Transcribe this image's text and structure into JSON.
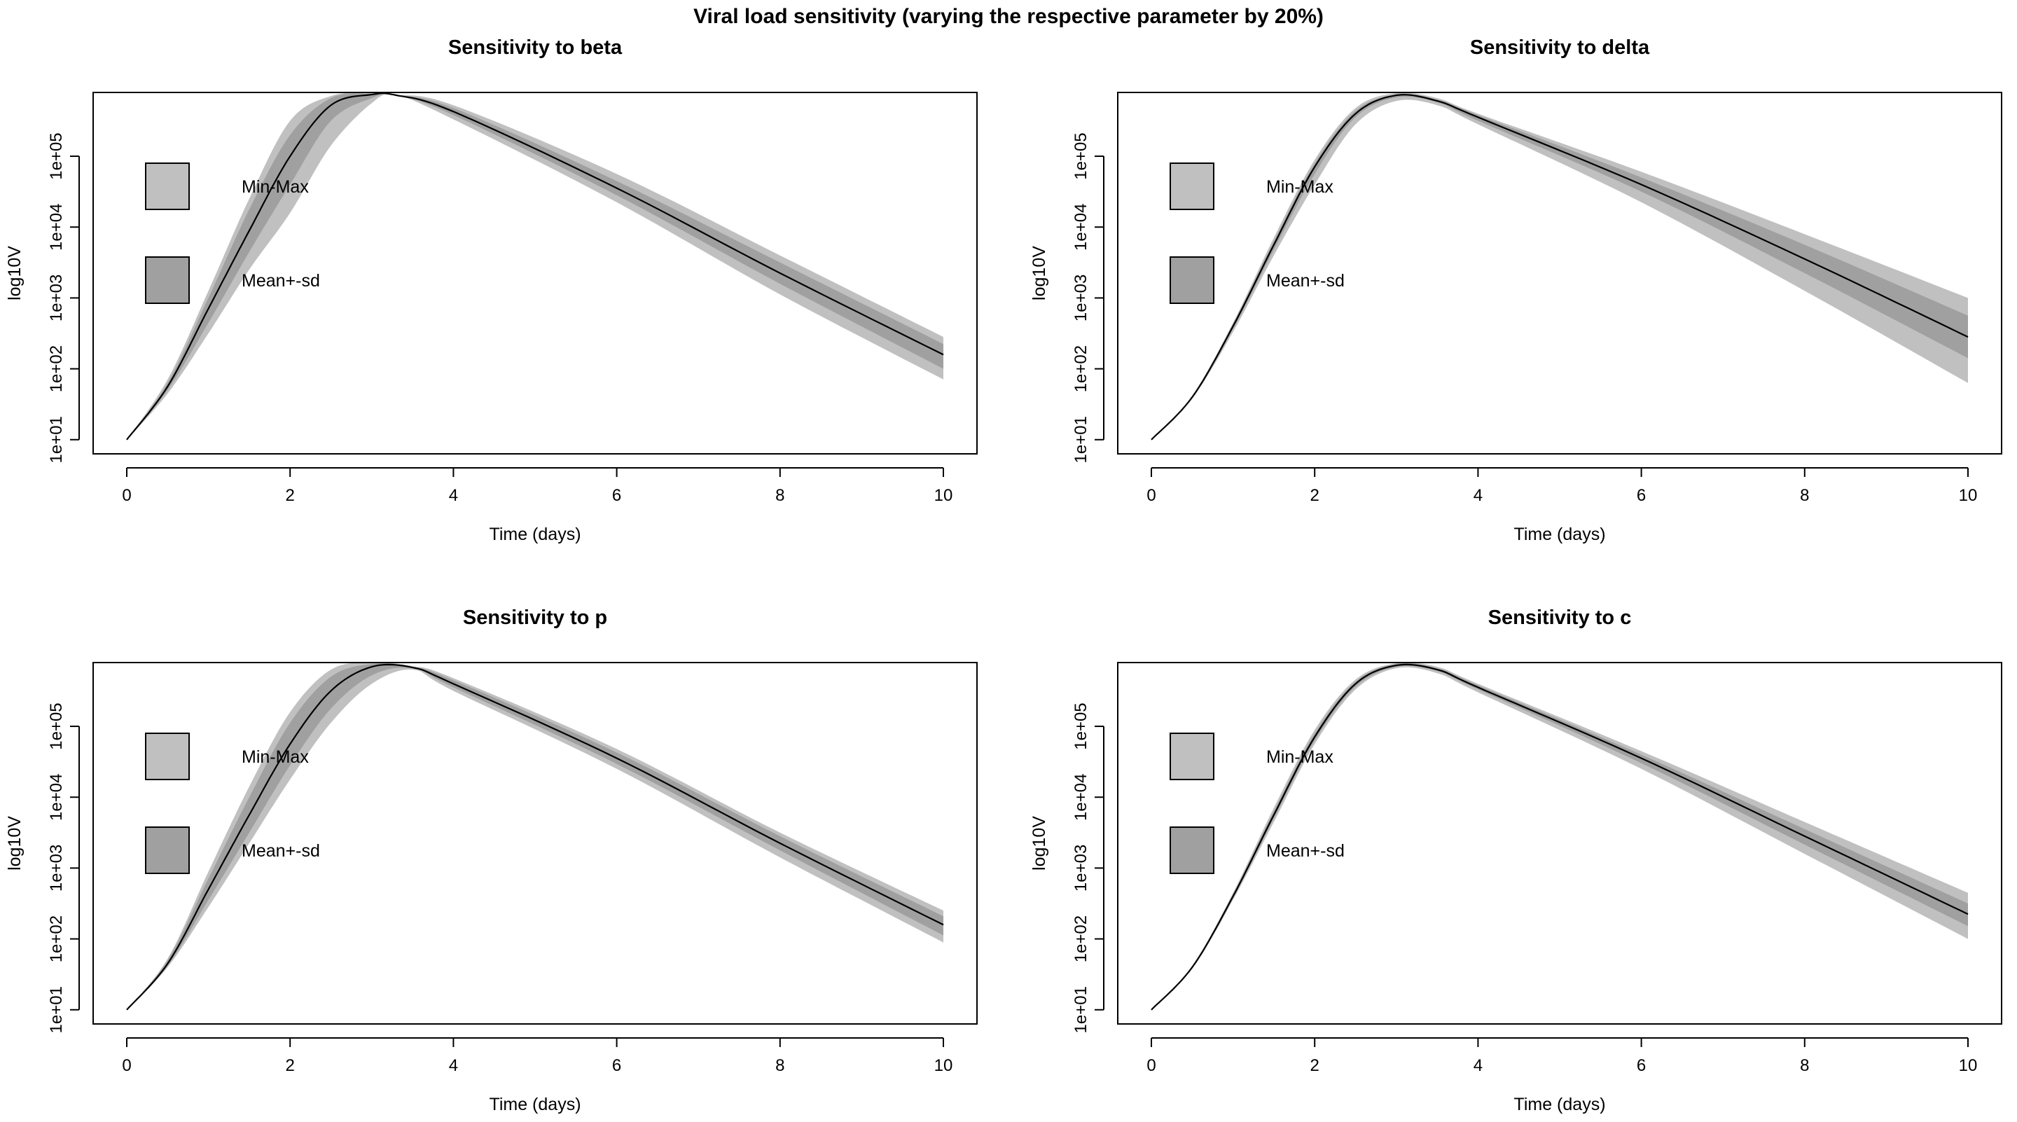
{
  "figure": {
    "title": "Viral load sensitivity (varying the respective parameter by 20%)"
  },
  "chart_data": [
    {
      "type": "area",
      "title": "Sensitivity to beta",
      "xlabel": "Time (days)",
      "ylabel": "log10V",
      "x_ticks": [
        "0",
        "2",
        "4",
        "6",
        "8",
        "10"
      ],
      "y_ticks": [
        "1e+01",
        "1e+02",
        "1e+03",
        "1e+04",
        "1e+05"
      ],
      "y_scale": "log10",
      "xlim": [
        0,
        10
      ],
      "ylim_log10": [
        0.8,
        5.9
      ],
      "legend": {
        "position": "left",
        "entries": [
          {
            "label": "Min-Max",
            "color": "#c0c0c0"
          },
          {
            "label": "Mean+-sd",
            "color": "#a0a0a0"
          }
        ]
      },
      "x": [
        0,
        0.5,
        1,
        1.5,
        2,
        2.5,
        3,
        3.3,
        4,
        6,
        8,
        10
      ],
      "series": [
        {
          "values_log10": [
            1.0,
            1.75,
            2.85,
            3.95,
            5.0,
            5.72,
            5.87,
            5.86,
            5.63,
            4.55,
            3.35,
            2.2
          ]
        },
        {
          "role": "min",
          "values_log10": [
            1.0,
            1.65,
            2.5,
            3.4,
            4.2,
            5.15,
            5.75,
            5.86,
            5.52,
            4.35,
            3.05,
            1.85
          ]
        },
        {
          "role": "max",
          "values_log10": [
            1.0,
            1.85,
            3.1,
            4.4,
            5.5,
            5.85,
            5.9,
            5.87,
            5.72,
            4.75,
            3.6,
            2.45
          ]
        },
        {
          "role": "mean-sd",
          "values_log10": [
            1.0,
            1.7,
            2.65,
            3.65,
            4.6,
            5.5,
            5.82,
            5.86,
            5.58,
            4.45,
            3.2,
            2.0
          ]
        },
        {
          "role": "mean+sd",
          "values_log10": [
            1.0,
            1.8,
            3.0,
            4.25,
            5.3,
            5.82,
            5.88,
            5.86,
            5.68,
            4.65,
            3.5,
            2.35
          ]
        }
      ]
    },
    {
      "type": "area",
      "title": "Sensitivity to delta",
      "xlabel": "Time (days)",
      "ylabel": "log10V",
      "x_ticks": [
        "0",
        "2",
        "4",
        "6",
        "8",
        "10"
      ],
      "y_ticks": [
        "1e+01",
        "1e+02",
        "1e+03",
        "1e+04",
        "1e+05"
      ],
      "y_scale": "log10",
      "xlim": [
        0,
        10
      ],
      "ylim_log10": [
        0.8,
        5.9
      ],
      "legend": {
        "position": "left",
        "entries": [
          {
            "label": "Min-Max",
            "color": "#c0c0c0"
          },
          {
            "label": "Mean+-sd",
            "color": "#a0a0a0"
          }
        ]
      },
      "x": [
        0,
        0.5,
        1,
        1.5,
        2,
        2.5,
        3,
        3.5,
        4,
        6,
        8,
        10
      ],
      "series": [
        {
          "values_log10": [
            1.0,
            1.6,
            2.6,
            3.75,
            4.85,
            5.6,
            5.86,
            5.78,
            5.55,
            4.6,
            3.55,
            2.45
          ]
        },
        {
          "role": "min",
          "values_log10": [
            1.0,
            1.58,
            2.52,
            3.6,
            4.6,
            5.45,
            5.78,
            5.72,
            5.45,
            4.35,
            3.1,
            1.8
          ]
        },
        {
          "role": "max",
          "values_log10": [
            1.0,
            1.62,
            2.65,
            3.85,
            4.95,
            5.68,
            5.89,
            5.82,
            5.6,
            4.78,
            3.9,
            3.0
          ]
        },
        {
          "role": "mean-sd",
          "values_log10": [
            1.0,
            1.59,
            2.56,
            3.68,
            4.75,
            5.55,
            5.83,
            5.76,
            5.5,
            4.5,
            3.35,
            2.15
          ]
        },
        {
          "role": "mean+sd",
          "values_log10": [
            1.0,
            1.61,
            2.63,
            3.8,
            4.9,
            5.64,
            5.87,
            5.8,
            5.58,
            4.7,
            3.75,
            2.75
          ]
        }
      ]
    },
    {
      "type": "area",
      "title": "Sensitivity to p",
      "xlabel": "Time (days)",
      "ylabel": "log10V",
      "x_ticks": [
        "0",
        "2",
        "4",
        "6",
        "8",
        "10"
      ],
      "y_ticks": [
        "1e+01",
        "1e+02",
        "1e+03",
        "1e+04",
        "1e+05"
      ],
      "y_scale": "log10",
      "xlim": [
        0,
        10
      ],
      "ylim_log10": [
        0.8,
        5.9
      ],
      "legend": {
        "position": "left",
        "entries": [
          {
            "label": "Min-Max",
            "color": "#c0c0c0"
          },
          {
            "label": "Mean+-sd",
            "color": "#a0a0a0"
          }
        ]
      },
      "x": [
        0,
        0.5,
        1,
        1.5,
        2,
        2.5,
        3,
        3.5,
        4,
        6,
        8,
        10
      ],
      "series": [
        {
          "values_log10": [
            1.0,
            1.65,
            2.7,
            3.75,
            4.75,
            5.5,
            5.84,
            5.83,
            5.6,
            4.55,
            3.35,
            2.2
          ]
        },
        {
          "role": "min",
          "values_log10": [
            1.0,
            1.6,
            2.45,
            3.35,
            4.25,
            5.05,
            5.6,
            5.8,
            5.5,
            4.4,
            3.15,
            1.95
          ]
        },
        {
          "role": "max",
          "values_log10": [
            1.0,
            1.72,
            2.95,
            4.15,
            5.2,
            5.8,
            5.9,
            5.85,
            5.68,
            4.68,
            3.5,
            2.4
          ]
        },
        {
          "role": "mean-sd",
          "values_log10": [
            1.0,
            1.62,
            2.55,
            3.5,
            4.45,
            5.25,
            5.72,
            5.82,
            5.55,
            4.47,
            3.25,
            2.05
          ]
        },
        {
          "role": "mean+sd",
          "values_log10": [
            1.0,
            1.7,
            2.85,
            4.0,
            5.05,
            5.7,
            5.88,
            5.84,
            5.65,
            4.63,
            3.45,
            2.32
          ]
        }
      ]
    },
    {
      "type": "area",
      "title": "Sensitivity to c",
      "xlabel": "Time (days)",
      "ylabel": "log10V",
      "x_ticks": [
        "0",
        "2",
        "4",
        "6",
        "8",
        "10"
      ],
      "y_ticks": [
        "1e+01",
        "1e+02",
        "1e+03",
        "1e+04",
        "1e+05"
      ],
      "y_scale": "log10",
      "xlim": [
        0,
        10
      ],
      "ylim_log10": [
        0.8,
        5.9
      ],
      "legend": {
        "position": "left",
        "entries": [
          {
            "label": "Min-Max",
            "color": "#c0c0c0"
          },
          {
            "label": "Mean+-sd",
            "color": "#a0a0a0"
          }
        ]
      },
      "x": [
        0,
        0.5,
        1,
        1.5,
        2,
        2.5,
        3,
        3.5,
        4,
        6,
        8,
        10
      ],
      "series": [
        {
          "values_log10": [
            1.0,
            1.6,
            2.6,
            3.75,
            4.85,
            5.6,
            5.86,
            5.8,
            5.55,
            4.55,
            3.45,
            2.35
          ]
        },
        {
          "role": "min",
          "values_log10": [
            1.0,
            1.58,
            2.55,
            3.65,
            4.75,
            5.52,
            5.82,
            5.75,
            5.48,
            4.4,
            3.2,
            2.0
          ]
        },
        {
          "role": "max",
          "values_log10": [
            1.0,
            1.62,
            2.65,
            3.85,
            4.95,
            5.66,
            5.89,
            5.84,
            5.6,
            4.65,
            3.65,
            2.65
          ]
        },
        {
          "role": "mean-sd",
          "values_log10": [
            1.0,
            1.59,
            2.58,
            3.7,
            4.8,
            5.56,
            5.84,
            5.78,
            5.52,
            4.48,
            3.33,
            2.18
          ]
        },
        {
          "role": "mean+sd",
          "values_log10": [
            1.0,
            1.61,
            2.63,
            3.8,
            4.9,
            5.63,
            5.88,
            5.82,
            5.58,
            4.6,
            3.55,
            2.5
          ]
        }
      ]
    }
  ]
}
